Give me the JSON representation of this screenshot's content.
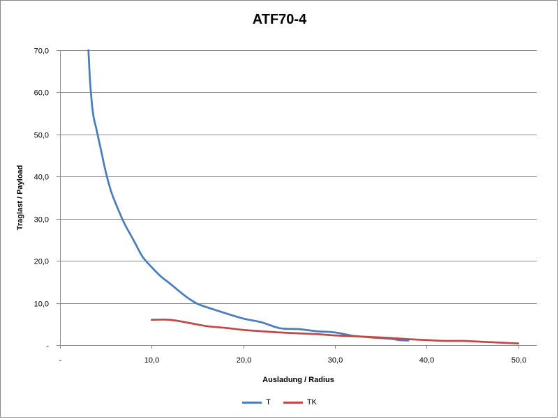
{
  "chart_data": {
    "type": "line",
    "title": "ATF70-4",
    "xlabel": "Ausladung / Radius",
    "ylabel": "Traglast / Payload",
    "xlim": [
      0,
      52
    ],
    "ylim": [
      0,
      70
    ],
    "x_ticks": [
      0,
      10,
      20,
      30,
      40,
      50
    ],
    "x_tick_labels": [
      "-",
      "10,0",
      "20,0",
      "30,0",
      "40,0",
      "50,0"
    ],
    "y_ticks": [
      0,
      10,
      20,
      30,
      40,
      50,
      60,
      70
    ],
    "y_tick_labels": [
      "-",
      "10,0",
      "20,0",
      "30,0",
      "40,0",
      "50,0",
      "60,0",
      "70,0"
    ],
    "grid": "horizontal",
    "legend_position": "bottom",
    "series": [
      {
        "name": "T",
        "color": "#4a7ebb",
        "x": [
          3.1,
          3.3,
          3.6,
          4.0,
          4.5,
          5.0,
          5.5,
          6.0,
          7.0,
          8.0,
          9.0,
          10.0,
          11.0,
          12.0,
          13.0,
          14.0,
          15.0,
          16.0,
          18.0,
          20.0,
          22.0,
          24.0,
          26.0,
          28.0,
          30.0,
          32.0,
          34.0,
          36.0,
          37.0,
          38.0
        ],
        "y": [
          70.0,
          62.0,
          55.0,
          51.0,
          46.0,
          41.0,
          37.0,
          34.0,
          29.0,
          25.0,
          21.0,
          18.5,
          16.3,
          14.6,
          12.8,
          11.1,
          9.8,
          9.0,
          7.6,
          6.3,
          5.4,
          4.0,
          3.8,
          3.3,
          3.0,
          2.2,
          1.8,
          1.5,
          1.2,
          1.1
        ]
      },
      {
        "name": "TK",
        "color": "#be4b48",
        "x": [
          10.0,
          12.0,
          14.0,
          16.0,
          18.0,
          20.0,
          22.0,
          24.0,
          26.0,
          28.0,
          30.0,
          32.0,
          34.0,
          36.0,
          38.0,
          40.0,
          42.0,
          44.0,
          46.0,
          48.0,
          50.0
        ],
        "y": [
          6.0,
          6.0,
          5.3,
          4.5,
          4.1,
          3.6,
          3.3,
          3.0,
          2.8,
          2.6,
          2.3,
          2.1,
          1.9,
          1.7,
          1.4,
          1.2,
          1.0,
          1.0,
          0.8,
          0.6,
          0.4
        ]
      }
    ]
  }
}
